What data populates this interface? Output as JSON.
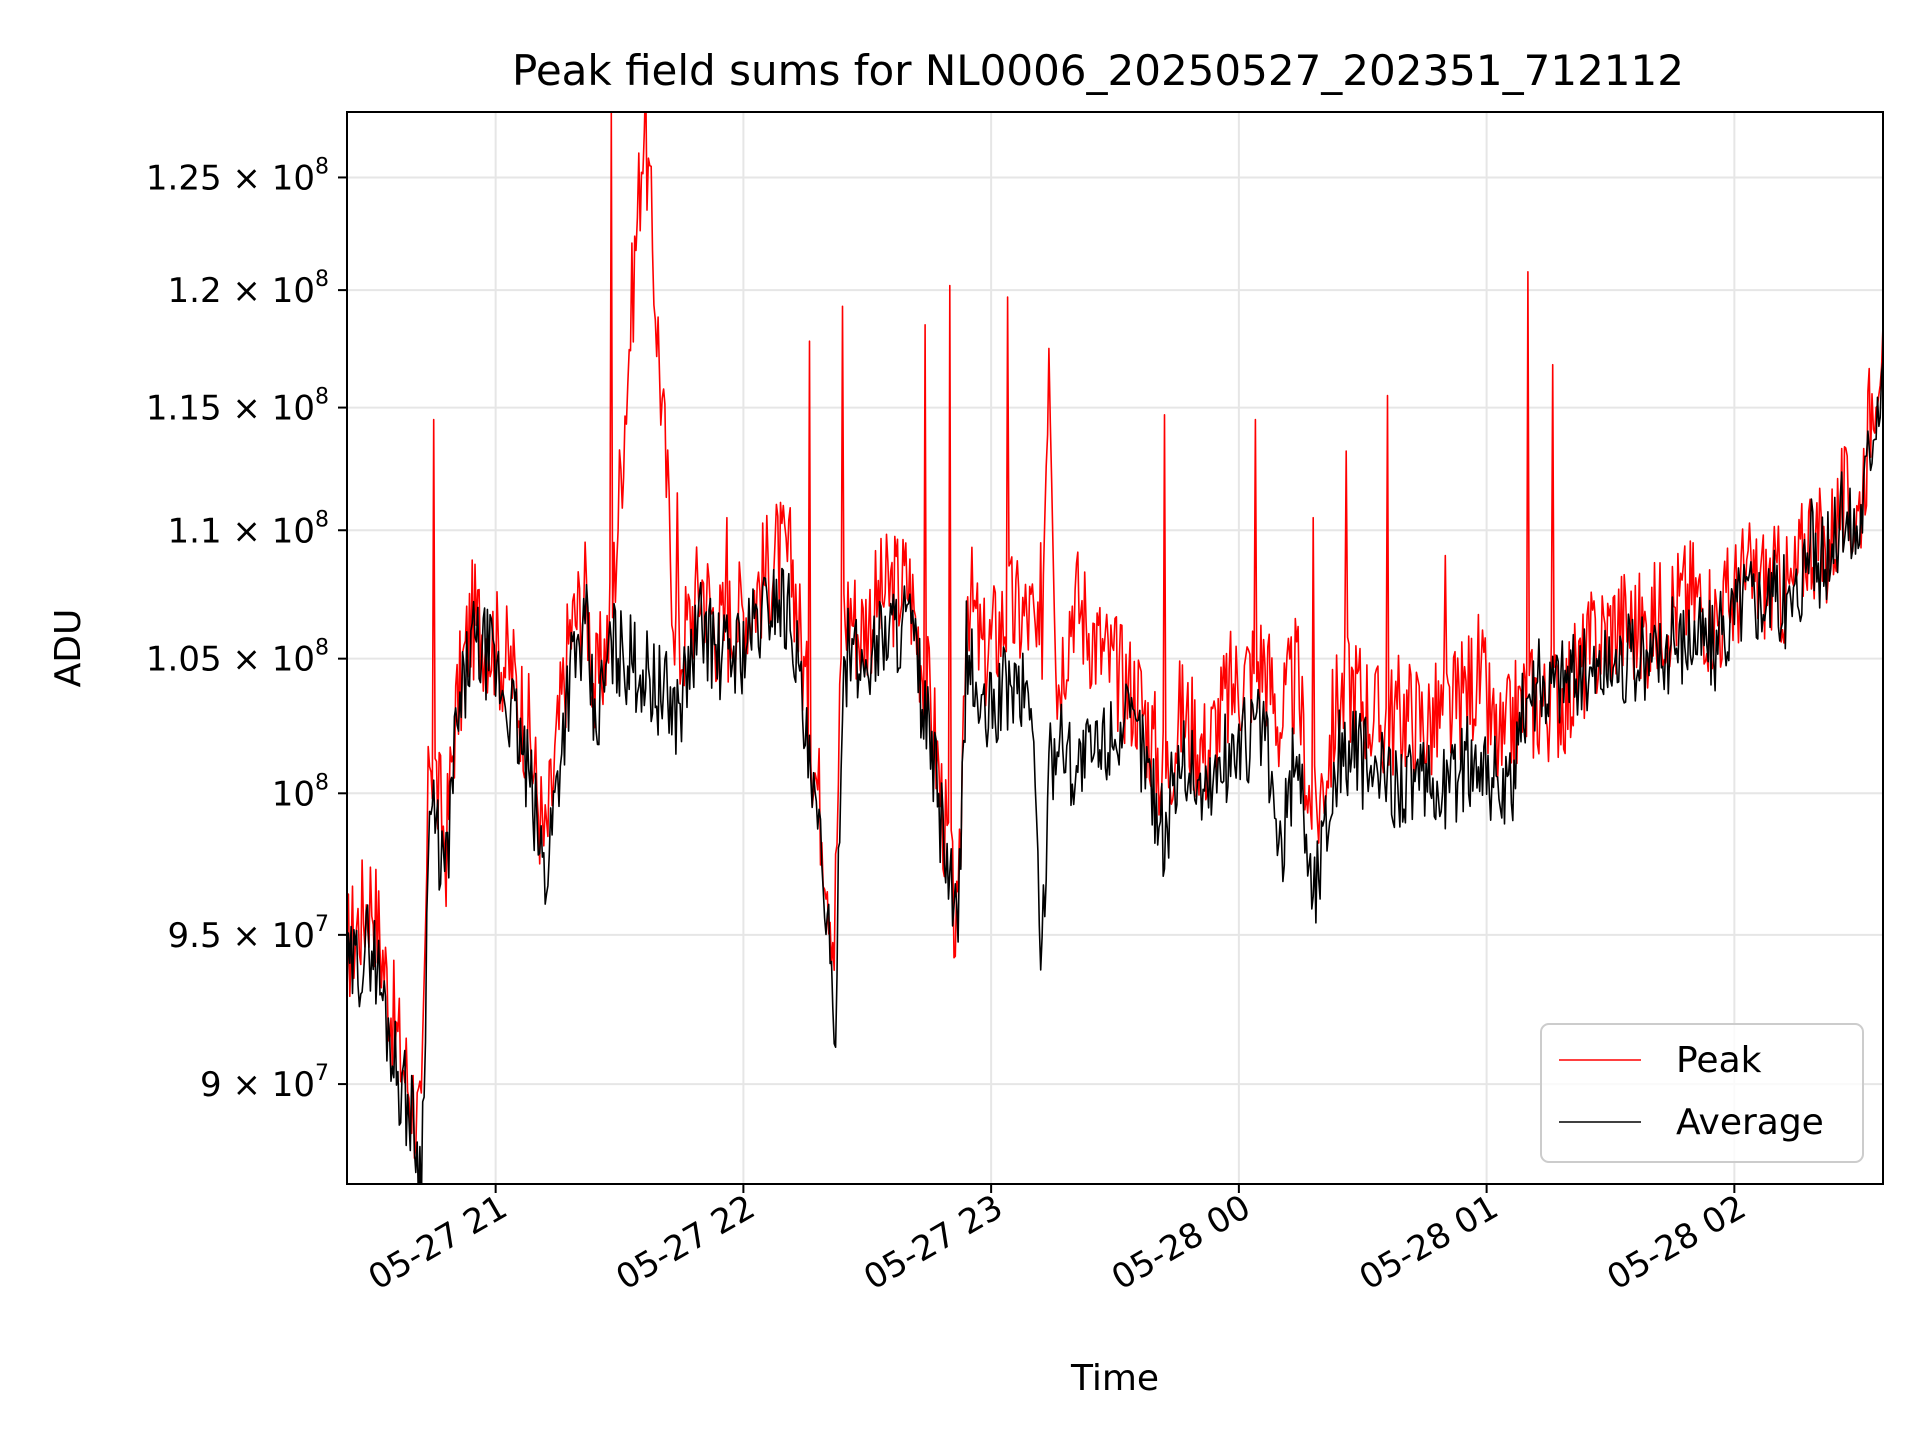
{
  "chart_data": {
    "type": "line",
    "title": "Peak field sums for NL0006_20250527_202351_712112",
    "xlabel": "Time",
    "ylabel": "ADU",
    "yscale": "log",
    "xlim": [
      "2025-05-27 20:24",
      "2025-05-28 02:36"
    ],
    "ylim": [
      86800000,
      128000000
    ],
    "grid": true,
    "legend": "lower-right",
    "x_ticks": [
      {
        "t": "2025-05-27 21:00",
        "label": "05-27 21"
      },
      {
        "t": "2025-05-27 22:00",
        "label": "05-27 22"
      },
      {
        "t": "2025-05-27 23:00",
        "label": "05-27 23"
      },
      {
        "t": "2025-05-28 00:00",
        "label": "05-28 00"
      },
      {
        "t": "2025-05-28 01:00",
        "label": "05-28 01"
      },
      {
        "t": "2025-05-28 02:00",
        "label": "05-28 02"
      }
    ],
    "y_ticks": [
      {
        "value": 90000000,
        "mantissa": "9",
        "exp": "7",
        "label": "9 × 10^7"
      },
      {
        "value": 95000000,
        "mantissa": "9.5",
        "exp": "7",
        "label": "9.5 × 10^7"
      },
      {
        "value": 100000000,
        "mantissa": "",
        "exp": "8",
        "label": "10^8"
      },
      {
        "value": 105000000,
        "mantissa": "1.05",
        "exp": "8",
        "label": "1.05 × 10^8"
      },
      {
        "value": 110000000,
        "mantissa": "1.1",
        "exp": "8",
        "label": "1.1 × 10^8"
      },
      {
        "value": 115000000,
        "mantissa": "1.15",
        "exp": "8",
        "label": "1.15 × 10^8"
      },
      {
        "value": 120000000,
        "mantissa": "1.2",
        "exp": "8",
        "label": "1.2 × 10^8"
      },
      {
        "value": 125000000,
        "mantissa": "1.25",
        "exp": "8",
        "label": "1.25 × 10^8"
      }
    ],
    "series": [
      {
        "name": "Peak",
        "color": "#ff0000",
        "x": [
          "2025-05-27 20:24",
          "2025-05-27 20:30",
          "2025-05-27 20:36",
          "2025-05-27 20:40",
          "2025-05-27 20:42",
          "2025-05-27 20:44",
          "2025-05-27 20:48",
          "2025-05-27 20:50",
          "2025-05-27 20:54",
          "2025-05-27 20:58",
          "2025-05-27 21:04",
          "2025-05-27 21:08",
          "2025-05-27 21:12",
          "2025-05-27 21:18",
          "2025-05-27 21:22",
          "2025-05-27 21:24",
          "2025-05-27 21:28",
          "2025-05-27 21:36",
          "2025-05-27 21:44",
          "2025-05-27 21:50",
          "2025-05-27 21:54",
          "2025-05-27 22:00",
          "2025-05-27 22:08",
          "2025-05-27 22:12",
          "2025-05-27 22:16",
          "2025-05-27 22:20",
          "2025-05-27 22:22",
          "2025-05-27 22:24",
          "2025-05-27 22:26",
          "2025-05-27 22:28",
          "2025-05-27 22:34",
          "2025-05-27 22:40",
          "2025-05-27 22:46",
          "2025-05-27 22:52",
          "2025-05-27 22:54",
          "2025-05-27 22:58",
          "2025-05-27 23:04",
          "2025-05-27 23:10",
          "2025-05-27 23:12",
          "2025-05-27 23:14",
          "2025-05-27 23:16",
          "2025-05-27 23:20",
          "2025-05-27 23:26",
          "2025-05-27 23:30",
          "2025-05-27 23:36",
          "2025-05-27 23:42",
          "2025-05-27 23:46",
          "2025-05-27 23:52",
          "2025-05-27 23:58",
          "2025-05-28 00:06",
          "2025-05-28 00:10",
          "2025-05-28 00:14",
          "2025-05-28 00:18",
          "2025-05-28 00:24",
          "2025-05-28 00:28",
          "2025-05-28 00:34",
          "2025-05-28 00:40",
          "2025-05-28 00:46",
          "2025-05-28 00:52",
          "2025-05-28 00:58",
          "2025-05-28 01:02",
          "2025-05-28 01:04",
          "2025-05-28 01:06",
          "2025-05-28 01:10",
          "2025-05-28 01:14",
          "2025-05-28 01:20",
          "2025-05-28 01:26",
          "2025-05-28 01:32",
          "2025-05-28 01:38",
          "2025-05-28 01:44",
          "2025-05-28 01:50",
          "2025-05-28 01:56",
          "2025-05-28 02:02",
          "2025-05-28 02:08",
          "2025-05-28 02:14",
          "2025-05-28 02:18",
          "2025-05-28 02:22",
          "2025-05-28 02:26",
          "2025-05-28 02:30",
          "2025-05-28 02:34",
          "2025-05-28 02:36"
        ],
        "y": [
          94500000,
          96500000,
          91500000,
          89500000,
          88200000,
          102000000,
          98000000,
          102500000,
          106500000,
          106000000,
          104500000,
          102200000,
          98000000,
          106000000,
          107500000,
          103500000,
          106500000,
          128000000,
          105000000,
          108000000,
          106000000,
          106800000,
          109000000,
          108500000,
          102500000,
          98000000,
          94800000,
          106500000,
          107000000,
          106000000,
          107500000,
          108000000,
          102500000,
          94500000,
          108000000,
          105000000,
          106800000,
          106500000,
          104000000,
          118500000,
          104000000,
          107500000,
          105500000,
          104500000,
          103500000,
          100500000,
          103000000,
          101500000,
          103800000,
          105000000,
          102500000,
          104500000,
          98500000,
          103500000,
          104000000,
          102500000,
          103000000,
          102500000,
          103000000,
          104500000,
          102000000,
          101500000,
          102500000,
          103500000,
          103200000,
          103800000,
          105500000,
          106500000,
          106000000,
          107000000,
          107500000,
          106500000,
          108000000,
          108000000,
          107500000,
          110000000,
          109000000,
          111000000,
          110500000,
          116500000,
          118500000
        ],
        "spikes": [
          {
            "x": "2025-05-27 21:28",
            "y": 128000000
          },
          {
            "x": "2025-05-27 20:45",
            "y": 114500000
          },
          {
            "x": "2025-05-27 21:44",
            "y": 111500000
          },
          {
            "x": "2025-05-27 21:56",
            "y": 110500000
          },
          {
            "x": "2025-05-27 22:16",
            "y": 117800000
          },
          {
            "x": "2025-05-27 22:24",
            "y": 119300000
          },
          {
            "x": "2025-05-27 22:44",
            "y": 118500000
          },
          {
            "x": "2025-05-27 22:50",
            "y": 120200000
          },
          {
            "x": "2025-05-27 23:04",
            "y": 119700000
          },
          {
            "x": "2025-05-27 23:12",
            "y": 109500000
          },
          {
            "x": "2025-05-27 23:42",
            "y": 114700000
          },
          {
            "x": "2025-05-28 00:04",
            "y": 114500000
          },
          {
            "x": "2025-05-28 00:18",
            "y": 110500000
          },
          {
            "x": "2025-05-28 00:26",
            "y": 113200000
          },
          {
            "x": "2025-05-28 00:36",
            "y": 115500000
          },
          {
            "x": "2025-05-28 00:50",
            "y": 109000000
          },
          {
            "x": "2025-05-28 01:10",
            "y": 120800000
          },
          {
            "x": "2025-05-28 01:16",
            "y": 116800000
          },
          {
            "x": "2025-05-28 01:50",
            "y": 109500000
          }
        ]
      },
      {
        "name": "Average",
        "color": "#000000",
        "x": [
          "2025-05-27 20:24",
          "2025-05-27 20:30",
          "2025-05-27 20:36",
          "2025-05-27 20:40",
          "2025-05-27 20:42",
          "2025-05-27 20:44",
          "2025-05-27 20:48",
          "2025-05-27 20:50",
          "2025-05-27 20:54",
          "2025-05-27 20:58",
          "2025-05-27 21:04",
          "2025-05-27 21:08",
          "2025-05-27 21:12",
          "2025-05-27 21:18",
          "2025-05-27 21:22",
          "2025-05-27 21:24",
          "2025-05-27 21:28",
          "2025-05-27 21:36",
          "2025-05-27 21:44",
          "2025-05-27 21:50",
          "2025-05-27 21:54",
          "2025-05-27 22:00",
          "2025-05-27 22:08",
          "2025-05-27 22:12",
          "2025-05-27 22:16",
          "2025-05-27 22:20",
          "2025-05-27 22:22",
          "2025-05-27 22:24",
          "2025-05-27 22:26",
          "2025-05-27 22:28",
          "2025-05-27 22:34",
          "2025-05-27 22:40",
          "2025-05-27 22:46",
          "2025-05-27 22:52",
          "2025-05-27 22:54",
          "2025-05-27 22:58",
          "2025-05-27 23:04",
          "2025-05-27 23:10",
          "2025-05-27 23:12",
          "2025-05-27 23:14",
          "2025-05-27 23:16",
          "2025-05-27 23:20",
          "2025-05-27 23:26",
          "2025-05-27 23:30",
          "2025-05-27 23:36",
          "2025-05-27 23:42",
          "2025-05-27 23:46",
          "2025-05-27 23:52",
          "2025-05-27 23:58",
          "2025-05-28 00:06",
          "2025-05-28 00:10",
          "2025-05-28 00:14",
          "2025-05-28 00:18",
          "2025-05-28 00:24",
          "2025-05-28 00:28",
          "2025-05-28 00:34",
          "2025-05-28 00:40",
          "2025-05-28 00:46",
          "2025-05-28 00:52",
          "2025-05-28 00:58",
          "2025-05-28 01:02",
          "2025-05-28 01:04",
          "2025-05-28 01:06",
          "2025-05-28 01:10",
          "2025-05-28 01:14",
          "2025-05-28 01:20",
          "2025-05-28 01:26",
          "2025-05-28 01:32",
          "2025-05-28 01:38",
          "2025-05-28 01:44",
          "2025-05-28 01:50",
          "2025-05-28 01:56",
          "2025-05-28 02:02",
          "2025-05-28 02:08",
          "2025-05-28 02:14",
          "2025-05-28 02:18",
          "2025-05-28 02:22",
          "2025-05-28 02:26",
          "2025-05-28 02:30",
          "2025-05-28 02:34",
          "2025-05-28 02:36"
        ],
        "y": [
          93500000,
          94800000,
          90500000,
          88800000,
          86900000,
          99500000,
          97000000,
          101500000,
          105500000,
          105200000,
          103000000,
          100500000,
          97000000,
          104500000,
          106000000,
          102200000,
          105500000,
          104500000,
          103000000,
          106500000,
          105000000,
          105500000,
          107500000,
          106500000,
          100500000,
          96500000,
          90500000,
          104500000,
          105500000,
          104500000,
          106000000,
          106500000,
          101000000,
          94700000,
          105500000,
          102500000,
          104000000,
          103500000,
          93700000,
          100500000,
          102500000,
          101000000,
          101500000,
          102500000,
          102000000,
          98500000,
          101500000,
          100000000,
          101500000,
          102500000,
          97500000,
          102000000,
          96200000,
          101500000,
          101500000,
          100500000,
          100500000,
          100000000,
          100500000,
          101500000,
          100500000,
          99500000,
          100000000,
          104000000,
          104000000,
          104500000,
          104500000,
          105000000,
          104800000,
          105500000,
          106000000,
          105500000,
          107500000,
          107500000,
          107000000,
          109500000,
          108500000,
          110500000,
          110000000,
          115000000,
          117000000
        ]
      }
    ]
  }
}
